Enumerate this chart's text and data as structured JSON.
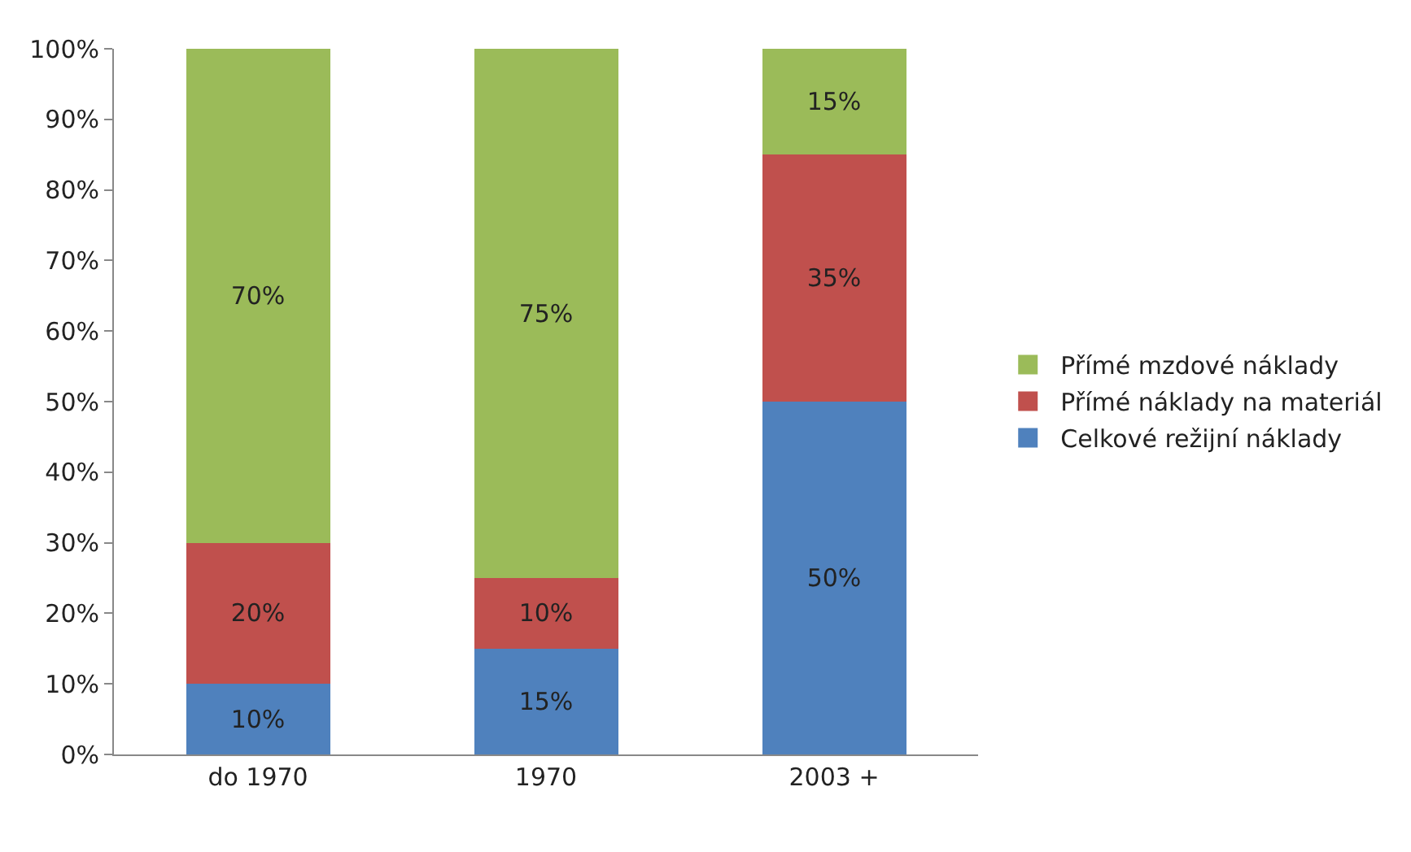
{
  "chart_data": {
    "type": "bar",
    "stacked": true,
    "categories": [
      "do 1970",
      "1970",
      "2003 +"
    ],
    "series": [
      {
        "name": "Celkové režijní náklady",
        "color": "#4f81bd",
        "values": [
          10,
          15,
          50
        ],
        "value_labels": [
          "10%",
          "15%",
          "50%"
        ]
      },
      {
        "name": "Přímé náklady na materiál",
        "color": "#c0504d",
        "values": [
          20,
          10,
          35
        ],
        "value_labels": [
          "20%",
          "10%",
          "35%"
        ]
      },
      {
        "name": "Přímé mzdové náklady",
        "color": "#9bbb59",
        "values": [
          70,
          75,
          15
        ],
        "value_labels": [
          "70%",
          "75%",
          "15%"
        ]
      }
    ],
    "ylim": [
      0,
      100
    ],
    "yticks": [
      {
        "value": 0,
        "label": "0%"
      },
      {
        "value": 10,
        "label": "10%"
      },
      {
        "value": 20,
        "label": "20%"
      },
      {
        "value": 30,
        "label": "30%"
      },
      {
        "value": 40,
        "label": "40%"
      },
      {
        "value": 50,
        "label": "50%"
      },
      {
        "value": 60,
        "label": "60%"
      },
      {
        "value": 70,
        "label": "70%"
      },
      {
        "value": 80,
        "label": "80%"
      },
      {
        "value": 90,
        "label": "90%"
      },
      {
        "value": 100,
        "label": "100%"
      }
    ],
    "grid": false,
    "legend": "right"
  }
}
